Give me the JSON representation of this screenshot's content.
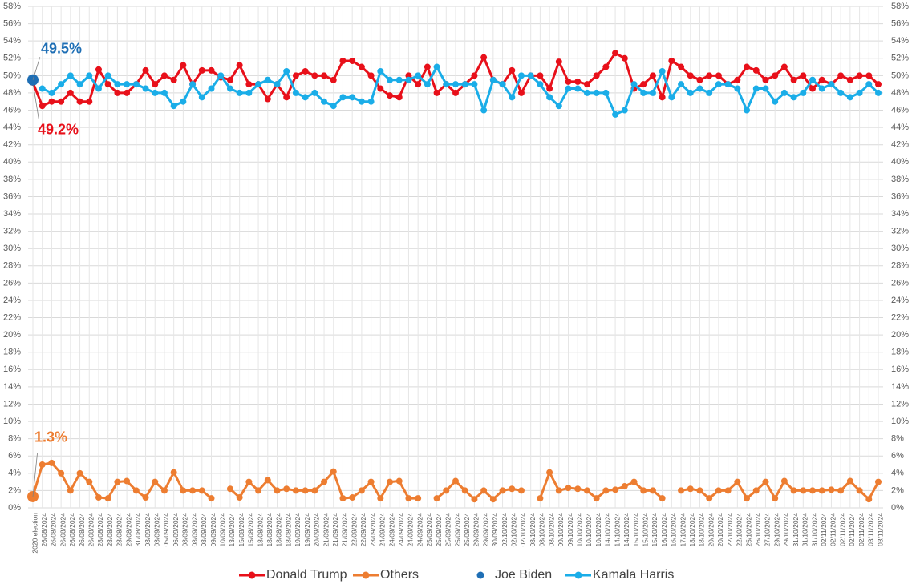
{
  "chart_data": {
    "type": "line",
    "categories": [
      "2020 election",
      "26/08/2024",
      "26/08/2024",
      "26/08/2024",
      "26/08/2024",
      "26/08/2024",
      "26/08/2024",
      "28/08/2024",
      "28/08/2024",
      "28/08/2024",
      "29/08/2024",
      "31/08/2024",
      "03/09/2024",
      "03/09/2024",
      "05/09/2024",
      "06/09/2024",
      "08/09/2024",
      "08/09/2024",
      "08/09/2024",
      "09/09/2024",
      "10/09/2024",
      "13/09/2024",
      "15/08/2024",
      "15/08/2024",
      "18/08/2024",
      "18/08/2024",
      "18/08/2024",
      "18/08/2024",
      "19/09/2024",
      "19/09/2024",
      "20/09/2024",
      "21/09/2024",
      "21/09/2024",
      "21/09/2024",
      "22/09/2024",
      "22/09/2024",
      "23/09/2024",
      "24/09/2024",
      "24/09/2024",
      "24/09/2024",
      "24/09/2024",
      "24/09/2024",
      "25/09/2024",
      "25/09/2024",
      "25/09/2024",
      "25/09/2024",
      "25/09/2024",
      "29/09/2024",
      "29/09/2024",
      "30/09/2024",
      "02/10/2024",
      "02/10/2024",
      "02/10/2024",
      "08/10/2024",
      "08/10/2024",
      "08/10/2024",
      "09/10/2024",
      "09/10/2024",
      "10/10/2024",
      "10/10/2024",
      "10/10/2024",
      "14/10/2024",
      "14/10/2024",
      "14/10/2024",
      "15/10/2024",
      "15/10/2024",
      "15/10/2024",
      "16/10/2024",
      "16/10/2024",
      "17/10/2024",
      "18/10/2024",
      "18/10/2024",
      "20/10/2024",
      "20/10/2024",
      "22/10/2024",
      "22/10/2024",
      "25/10/2024",
      "26/10/2024",
      "27/10/2024",
      "29/10/2024",
      "29/10/2024",
      "31/10/2024",
      "31/10/2024",
      "31/10/2024",
      "02/11/2024",
      "02/11/2024",
      "02/11/2024",
      "02/11/2024",
      "02/11/2024",
      "03/11/2024",
      "03/11/2024"
    ],
    "series": [
      {
        "name": "Donald Trump",
        "color": "#e8101a",
        "values": [
          49.2,
          46.5,
          47,
          47,
          48,
          47,
          47,
          50.7,
          49,
          48,
          48,
          49,
          50.6,
          49,
          50,
          49.5,
          51.2,
          49,
          50.6,
          50.6,
          49.8,
          49.5,
          51.2,
          49,
          49,
          47.3,
          49,
          47.5,
          50,
          50.5,
          50,
          50,
          49.5,
          51.7,
          51.7,
          51,
          50,
          48.5,
          47.7,
          47.5,
          50,
          49,
          51,
          48,
          49,
          48,
          49,
          50,
          52.1,
          49.5,
          49,
          50.6,
          48,
          50,
          50,
          48.5,
          51.6,
          49.3,
          49.3,
          49,
          50,
          51,
          52.6,
          52,
          48.5,
          49,
          50,
          47.5,
          51.7,
          51,
          50,
          49.5,
          50,
          50,
          49,
          49.5,
          51,
          50.6,
          49.5,
          50,
          51,
          49.5,
          50,
          48.5,
          49.5,
          49,
          50,
          49.5,
          50,
          50,
          49
        ],
        "value_labels": [
          "49.2%",
          null,
          null,
          null,
          null,
          null,
          null,
          null,
          null,
          null,
          null,
          null,
          null,
          null,
          null,
          null,
          null,
          null,
          null,
          null,
          null,
          null,
          null,
          null,
          null,
          null,
          null,
          null,
          null,
          null,
          null,
          null,
          null,
          null,
          null,
          null,
          null,
          null,
          null,
          null,
          null,
          null,
          null,
          null,
          null,
          null,
          null,
          null,
          null,
          null,
          null,
          null,
          null,
          null,
          null,
          null,
          null,
          null,
          null,
          null,
          null,
          null,
          null,
          null,
          null,
          null,
          null,
          null,
          null,
          null,
          null,
          null,
          null,
          null,
          null,
          null,
          null,
          null,
          null,
          null,
          null,
          null,
          null,
          null,
          null,
          null,
          null,
          null,
          null,
          null,
          null
        ]
      },
      {
        "name": "Others",
        "color": "#ed7d31",
        "values": [
          1.3,
          5,
          5.2,
          4,
          2,
          4,
          3,
          1.2,
          1.1,
          3,
          3.1,
          2,
          1.2,
          3,
          2,
          4.1,
          2,
          2,
          2,
          1.1,
          null,
          2.2,
          1.2,
          3,
          2,
          3.2,
          2,
          2.2,
          2,
          2,
          2,
          3,
          4.2,
          1.1,
          1.2,
          2,
          3,
          1.1,
          3,
          3.1,
          1.1,
          1.1,
          null,
          1.1,
          2,
          3.1,
          2,
          1,
          2,
          1,
          2,
          2.2,
          2,
          null,
          1.1,
          4.1,
          2,
          2.3,
          2.2,
          2,
          1.1,
          2,
          2.1,
          2.5,
          3,
          2,
          2,
          1.1,
          null,
          2,
          2.2,
          2,
          1.1,
          2,
          2,
          3,
          1.1,
          2,
          3,
          1.1,
          3.1,
          2,
          2,
          2,
          2,
          2.1,
          2,
          3.1,
          2,
          1,
          3
        ],
        "value_labels": [
          "1.3%",
          null,
          null,
          null,
          null,
          null,
          null,
          null,
          null,
          null,
          null,
          null,
          null,
          null,
          null,
          null,
          null,
          null,
          null,
          null,
          null,
          null,
          null,
          null,
          null,
          null,
          null,
          null,
          null,
          null,
          null,
          null,
          null,
          null,
          null,
          null,
          null,
          null,
          null,
          null,
          null,
          null,
          null,
          null,
          null,
          null,
          null,
          null,
          null,
          null,
          null,
          null,
          null,
          null,
          null,
          null,
          null,
          null,
          null,
          null,
          null,
          null,
          null,
          null,
          null,
          null,
          null,
          null,
          null,
          null,
          null,
          null,
          null,
          null,
          null,
          null,
          null,
          null,
          null,
          null,
          null,
          null,
          null,
          null,
          null,
          null,
          null,
          null,
          null,
          null,
          null
        ]
      },
      {
        "name": "Joe Biden",
        "color": "#1f6fb5",
        "values": [
          49.5,
          null,
          null,
          null,
          null,
          null,
          null,
          null,
          null,
          null,
          null,
          null,
          null,
          null,
          null,
          null,
          null,
          null,
          null,
          null,
          null,
          null,
          null,
          null,
          null,
          null,
          null,
          null,
          null,
          null,
          null,
          null,
          null,
          null,
          null,
          null,
          null,
          null,
          null,
          null,
          null,
          null,
          null,
          null,
          null,
          null,
          null,
          null,
          null,
          null,
          null,
          null,
          null,
          null,
          null,
          null,
          null,
          null,
          null,
          null,
          null,
          null,
          null,
          null,
          null,
          null,
          null,
          null,
          null,
          null,
          null,
          null,
          null,
          null,
          null,
          null,
          null,
          null,
          null,
          null,
          null,
          null,
          null,
          null,
          null,
          null,
          null,
          null,
          null,
          null,
          null
        ],
        "value_labels": [
          "49.5%",
          null,
          null,
          null,
          null,
          null,
          null,
          null,
          null,
          null,
          null,
          null,
          null,
          null,
          null,
          null,
          null,
          null,
          null,
          null,
          null,
          null,
          null,
          null,
          null,
          null,
          null,
          null,
          null,
          null,
          null,
          null,
          null,
          null,
          null,
          null,
          null,
          null,
          null,
          null,
          null,
          null,
          null,
          null,
          null,
          null,
          null,
          null,
          null,
          null,
          null,
          null,
          null,
          null,
          null,
          null,
          null,
          null,
          null,
          null,
          null,
          null,
          null,
          null,
          null,
          null,
          null,
          null,
          null,
          null,
          null,
          null,
          null,
          null,
          null,
          null,
          null,
          null,
          null,
          null,
          null,
          null,
          null,
          null,
          null,
          null,
          null,
          null,
          null,
          null,
          null
        ]
      },
      {
        "name": "Kamala Harris",
        "color": "#1aade8",
        "values": [
          null,
          48.5,
          48,
          49,
          50,
          49,
          50,
          48.5,
          50,
          49,
          49,
          49,
          48.5,
          48,
          48,
          46.5,
          47,
          49,
          47.5,
          48.5,
          50,
          48.5,
          48,
          48,
          49,
          49.5,
          49,
          50.5,
          48,
          47.5,
          48,
          47,
          46.5,
          47.5,
          47.5,
          47,
          47,
          50.5,
          49.5,
          49.5,
          49.5,
          50,
          49,
          51,
          49,
          49,
          49,
          49,
          46,
          49.5,
          49,
          47.5,
          50,
          50,
          49,
          47.5,
          46.5,
          48.5,
          48.5,
          48,
          48,
          48,
          45.5,
          46,
          49,
          48,
          48,
          50.5,
          47.5,
          49,
          48,
          48.5,
          48,
          49,
          49,
          48.5,
          46,
          48.5,
          48.5,
          47,
          48,
          47.5,
          48,
          49.5,
          48.5,
          49,
          48,
          47.5,
          48,
          49,
          48
        ]
      }
    ],
    "ylim": [
      0,
      58
    ],
    "yticks": [
      {
        "value": 0,
        "label": "0%"
      },
      {
        "value": 2,
        "label": "2%"
      },
      {
        "value": 4,
        "label": "4%"
      },
      {
        "value": 6,
        "label": "6%"
      },
      {
        "value": 8,
        "label": "8%"
      },
      {
        "value": 10,
        "label": "10%"
      },
      {
        "value": 12,
        "label": "12%"
      },
      {
        "value": 14,
        "label": "14%"
      },
      {
        "value": 16,
        "label": "16%"
      },
      {
        "value": 18,
        "label": "18%"
      },
      {
        "value": 20,
        "label": "20%"
      },
      {
        "value": 22,
        "label": "22%"
      },
      {
        "value": 24,
        "label": "24%"
      },
      {
        "value": 26,
        "label": "26%"
      },
      {
        "value": 28,
        "label": "28%"
      },
      {
        "value": 30,
        "label": "30%"
      },
      {
        "value": 32,
        "label": "32%"
      },
      {
        "value": 34,
        "label": "34%"
      },
      {
        "value": 36,
        "label": "36%"
      },
      {
        "value": 38,
        "label": "38%"
      },
      {
        "value": 40,
        "label": "40%"
      },
      {
        "value": 42,
        "label": "42%"
      },
      {
        "value": 44,
        "label": "44%"
      },
      {
        "value": 46,
        "label": "46%"
      },
      {
        "value": 48,
        "label": "48%"
      },
      {
        "value": 50,
        "label": "50%"
      },
      {
        "value": 52,
        "label": "52%"
      },
      {
        "value": 54,
        "label": "54%"
      },
      {
        "value": 56,
        "label": "56%"
      },
      {
        "value": 58,
        "label": "58%"
      }
    ],
    "grid": true,
    "legend": "bottom"
  }
}
